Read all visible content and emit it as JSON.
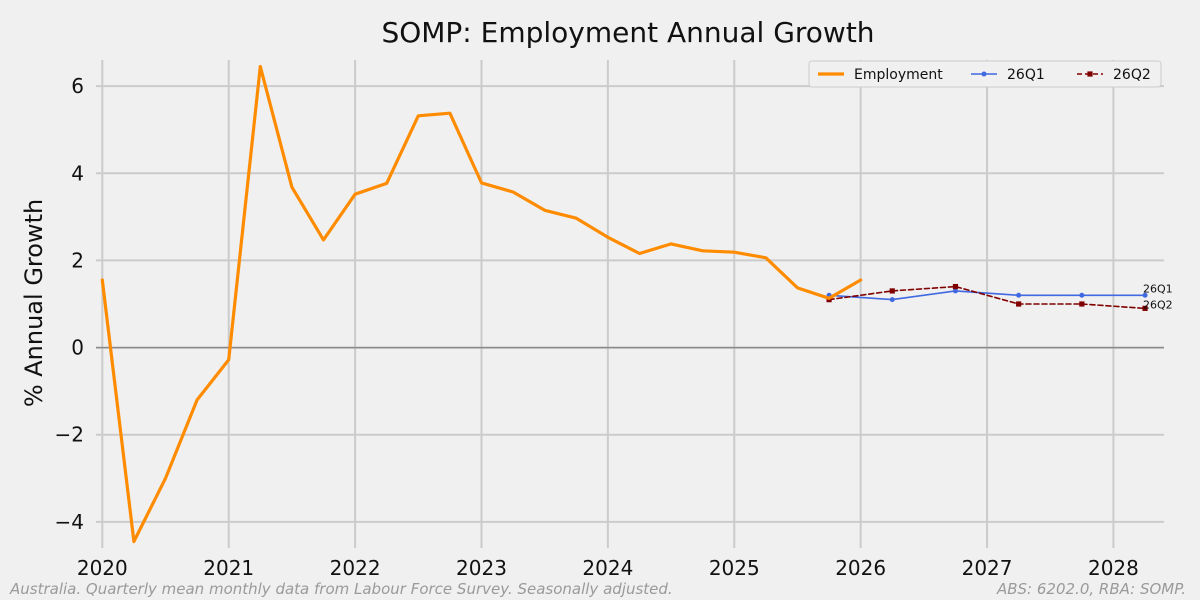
{
  "chart_data": {
    "type": "line",
    "title": "SOMP: Employment Annual Growth",
    "ylabel": "% Annual Growth",
    "xlim": [
      2019.95,
      2028.4
    ],
    "ylim": [
      -4.6,
      6.6
    ],
    "x_ticks": [
      {
        "value": 2020,
        "label": "2020"
      },
      {
        "value": 2021,
        "label": "2021"
      },
      {
        "value": 2022,
        "label": "2022"
      },
      {
        "value": 2023,
        "label": "2023"
      },
      {
        "value": 2024,
        "label": "2024"
      },
      {
        "value": 2025,
        "label": "2025"
      },
      {
        "value": 2026,
        "label": "2026"
      },
      {
        "value": 2027,
        "label": "2027"
      },
      {
        "value": 2028,
        "label": "2028"
      }
    ],
    "y_ticks": [
      {
        "value": -4,
        "label": "−4"
      },
      {
        "value": -2,
        "label": "−2"
      },
      {
        "value": 0,
        "label": "0"
      },
      {
        "value": 2,
        "label": "2"
      },
      {
        "value": 4,
        "label": "4"
      },
      {
        "value": 6,
        "label": "6"
      }
    ],
    "grid": true,
    "legend_position": "top-right",
    "series": [
      {
        "name": "Employment",
        "color": "#ff8c00",
        "style": "solid",
        "marker": "none",
        "points": [
          [
            2020.0,
            1.55
          ],
          [
            2020.25,
            -4.45
          ],
          [
            2020.5,
            -3.0
          ],
          [
            2020.75,
            -1.2
          ],
          [
            2021.0,
            -0.28
          ],
          [
            2021.25,
            6.45
          ],
          [
            2021.5,
            3.68
          ],
          [
            2021.75,
            2.47
          ],
          [
            2022.0,
            3.52
          ],
          [
            2022.25,
            3.77
          ],
          [
            2022.5,
            5.32
          ],
          [
            2022.75,
            5.38
          ],
          [
            2023.0,
            3.78
          ],
          [
            2023.25,
            3.57
          ],
          [
            2023.5,
            3.15
          ],
          [
            2023.75,
            2.97
          ],
          [
            2024.0,
            2.53
          ],
          [
            2024.25,
            2.16
          ],
          [
            2024.5,
            2.38
          ],
          [
            2024.75,
            2.22
          ],
          [
            2025.0,
            2.19
          ],
          [
            2025.25,
            2.06
          ],
          [
            2025.5,
            1.37
          ],
          [
            2025.75,
            1.13
          ],
          [
            2026.0,
            1.55
          ]
        ]
      },
      {
        "name": "26Q1",
        "color": "#4169e1",
        "style": "solid",
        "marker": "circle",
        "end_label": "26Q1",
        "points": [
          [
            2025.75,
            1.2
          ],
          [
            2026.25,
            1.1
          ],
          [
            2026.75,
            1.3
          ],
          [
            2027.25,
            1.2
          ],
          [
            2027.75,
            1.2
          ],
          [
            2028.25,
            1.2
          ]
        ]
      },
      {
        "name": "26Q2",
        "color": "#800000",
        "style": "dashed",
        "marker": "square",
        "end_label": "26Q2",
        "points": [
          [
            2025.75,
            1.1
          ],
          [
            2026.25,
            1.3
          ],
          [
            2026.75,
            1.4
          ],
          [
            2027.25,
            1.0
          ],
          [
            2027.75,
            1.0
          ],
          [
            2028.25,
            0.9
          ]
        ]
      }
    ],
    "footnote_left": "Australia. Quarterly mean monthly data from Labour Force Survey. Seasonally adjusted.",
    "footnote_right": "ABS: 6202.0, RBA: SOMP."
  }
}
